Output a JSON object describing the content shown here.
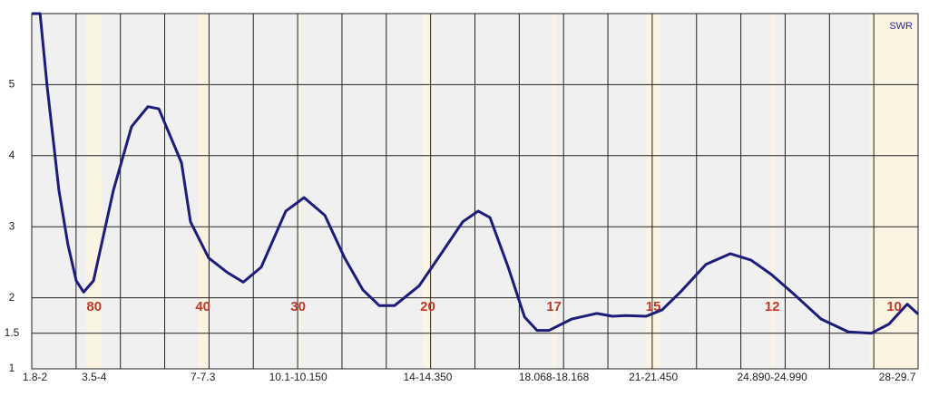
{
  "chart_data": {
    "type": "line",
    "xlim": [
      1.8,
      29.5
    ],
    "ylim": [
      1,
      6
    ],
    "yticks": [
      1,
      1.5,
      2,
      3,
      4,
      5
    ],
    "xticks": [
      {
        "value": 1.9,
        "label": "1.8-2"
      },
      {
        "value": 3.75,
        "label": "3.5-4"
      },
      {
        "value": 7.15,
        "label": "7-7.3"
      },
      {
        "value": 10.125,
        "label": "10.1-10.150"
      },
      {
        "value": 14.175,
        "label": "14-14.350"
      },
      {
        "value": 18.118,
        "label": "18.068-18.168"
      },
      {
        "value": 21.225,
        "label": "21-21.450"
      },
      {
        "value": 24.94,
        "label": "24.890-24.990"
      },
      {
        "value": 28.85,
        "label": "28-29.7"
      }
    ],
    "grid": true,
    "bands": [
      {
        "range": [
          3.5,
          4
        ],
        "label": "80"
      },
      {
        "range": [
          7,
          7.3
        ],
        "label": "40"
      },
      {
        "range": [
          10.1,
          10.15
        ],
        "label": "30"
      },
      {
        "range": [
          14,
          14.35
        ],
        "label": "20"
      },
      {
        "range": [
          18.068,
          18.168
        ],
        "label": "17"
      },
      {
        "range": [
          21,
          21.45
        ],
        "label": "15"
      },
      {
        "range": [
          24.89,
          24.99
        ],
        "label": "12"
      },
      {
        "range": [
          28,
          29.7
        ],
        "label": "10"
      }
    ],
    "band_color": "#fbf4e2",
    "legend": "top-right",
    "series": [
      {
        "name": "SWR",
        "color": "#1c1c7a",
        "x": [
          1.8,
          2.06,
          2.28,
          2.65,
          2.93,
          3.19,
          3.42,
          3.73,
          4.35,
          4.92,
          5.43,
          5.77,
          6.48,
          6.76,
          7.33,
          7.9,
          8.41,
          8.97,
          9.74,
          10.31,
          10.96,
          11.58,
          12.15,
          12.66,
          13.14,
          13.91,
          14.64,
          15.27,
          15.75,
          16.12,
          16.69,
          17.2,
          17.59,
          17.96,
          18.67,
          19.46,
          19.95,
          20.37,
          21.0,
          21.5,
          22.07,
          22.87,
          23.63,
          24.28,
          24.91,
          25.62,
          26.47,
          27.32,
          28.03,
          28.59,
          29.16,
          29.5
        ],
        "values": [
          6.0,
          6.0,
          4.98,
          3.51,
          2.75,
          2.24,
          2.08,
          2.24,
          3.51,
          4.41,
          4.69,
          4.66,
          3.9,
          3.07,
          2.56,
          2.36,
          2.22,
          2.43,
          3.22,
          3.41,
          3.16,
          2.56,
          2.11,
          1.89,
          1.89,
          2.17,
          2.65,
          3.07,
          3.22,
          3.13,
          2.43,
          1.73,
          1.54,
          1.54,
          1.7,
          1.78,
          1.74,
          1.75,
          1.74,
          1.83,
          2.08,
          2.47,
          2.62,
          2.53,
          2.33,
          2.05,
          1.7,
          1.52,
          1.5,
          1.63,
          1.91,
          1.77
        ]
      }
    ]
  }
}
